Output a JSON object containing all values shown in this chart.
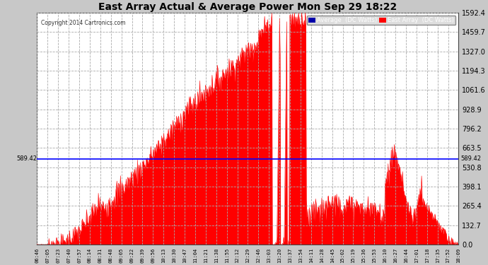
{
  "title": "East Array Actual & Average Power Mon Sep 29 18:22",
  "copyright": "Copyright 2014 Cartronics.com",
  "average_value": 589.42,
  "y_max": 1592.4,
  "y_min": 0.0,
  "y_ticks": [
    0.0,
    132.7,
    265.4,
    398.1,
    530.8,
    663.5,
    796.2,
    928.9,
    1061.6,
    1194.3,
    1327.0,
    1459.7,
    1592.4
  ],
  "x_labels": [
    "06:46",
    "07:05",
    "07:23",
    "07:40",
    "07:57",
    "08:14",
    "08:31",
    "08:48",
    "09:05",
    "09:22",
    "09:39",
    "09:56",
    "10:13",
    "10:30",
    "10:47",
    "11:04",
    "11:21",
    "11:38",
    "11:55",
    "12:12",
    "12:29",
    "12:46",
    "13:03",
    "13:20",
    "13:37",
    "13:54",
    "14:11",
    "14:28",
    "14:45",
    "15:02",
    "15:19",
    "15:36",
    "15:53",
    "16:10",
    "16:27",
    "16:44",
    "17:01",
    "17:18",
    "17:35",
    "17:52",
    "18:09"
  ],
  "background_color": "#c8c8c8",
  "plot_bg_color": "#ffffff",
  "area_color": "#ff0000",
  "line_color": "#0000ff",
  "grid_color": "#c8c8c8",
  "title_color": "#000000",
  "legend_avg_bg": "#0000aa",
  "legend_ea_bg": "#ff0000",
  "legend_text_color": "#ffffff"
}
